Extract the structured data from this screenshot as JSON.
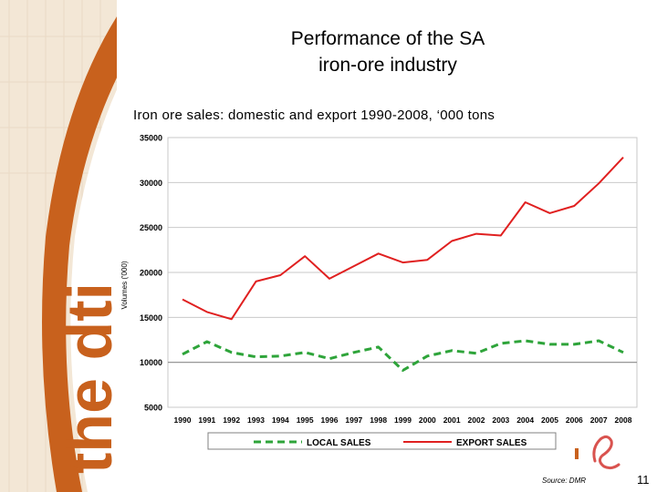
{
  "slide": {
    "title_line1": "Performance of the SA",
    "title_line2": "iron-ore industry",
    "subtitle": "Iron ore sales: domestic and export 1990-2008, ‘000 tons",
    "source": "Source: DMR",
    "page_number": "11",
    "brand_text": "the dti"
  },
  "colors": {
    "brand_orange": "#c8611d",
    "export_red": "#e02020",
    "local_green": "#2ea43a",
    "panel_beige": "#f3e7d6"
  },
  "chart_data": {
    "type": "line",
    "title": "Iron ore sales: domestic and export 1990-2008, ‘000 tons",
    "xlabel": "",
    "ylabel": "Volumes ('000)",
    "ylim": [
      5000,
      35000
    ],
    "yticks": [
      5000,
      10000,
      15000,
      20000,
      25000,
      30000,
      35000
    ],
    "grid": true,
    "legend_position": "bottom",
    "categories": [
      "1990",
      "1991",
      "1992",
      "1993",
      "1994",
      "1995",
      "1996",
      "1997",
      "1998",
      "1999",
      "2000",
      "2001",
      "2002",
      "2003",
      "2004",
      "2005",
      "2006",
      "2007",
      "2008"
    ],
    "series": [
      {
        "name": "LOCAL SALES",
        "style": "dashed",
        "color": "#2ea43a",
        "values": [
          10900,
          12300,
          11100,
          10600,
          10700,
          11100,
          10400,
          11100,
          11700,
          9100,
          10700,
          11300,
          11000,
          12100,
          12400,
          12000,
          12000,
          12400,
          11100
        ]
      },
      {
        "name": "EXPORT SALES",
        "style": "solid",
        "color": "#e02020",
        "values": [
          17000,
          15600,
          14800,
          19000,
          19700,
          21800,
          19300,
          20700,
          22100,
          21100,
          21400,
          23500,
          24300,
          24100,
          27800,
          26600,
          27400,
          29900,
          32800
        ]
      }
    ]
  }
}
